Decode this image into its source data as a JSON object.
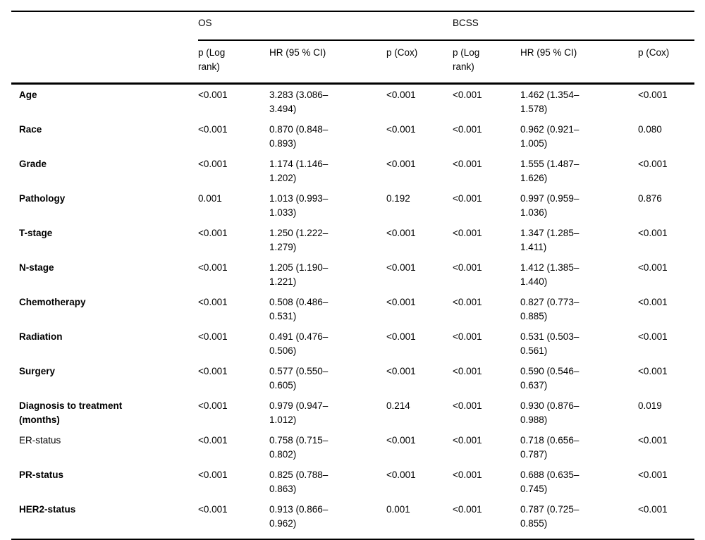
{
  "table": {
    "group_headers": [
      {
        "label": "OS"
      },
      {
        "label": "BCSS"
      }
    ],
    "sub_headers": [
      "p (Log rank)",
      "HR (95 % CI)",
      "p (Cox)",
      "p (Log rank)",
      "HR (95 % CI)",
      "p (Cox)"
    ],
    "rows": [
      {
        "label": "Age",
        "bold": true,
        "os": {
          "p_log": "<0.001",
          "hr": "3.283 (3.086–3.494)",
          "p_cox": "<0.001"
        },
        "bcss": {
          "p_log": "<0.001",
          "hr": "1.462 (1.354–1.578)",
          "p_cox": "<0.001"
        }
      },
      {
        "label": "Race",
        "bold": true,
        "os": {
          "p_log": "<0.001",
          "hr": "0.870 (0.848–0.893)",
          "p_cox": "<0.001"
        },
        "bcss": {
          "p_log": "<0.001",
          "hr": "0.962 (0.921–1.005)",
          "p_cox": "0.080"
        }
      },
      {
        "label": "Grade",
        "bold": true,
        "os": {
          "p_log": "<0.001",
          "hr": "1.174 (1.146–1.202)",
          "p_cox": "<0.001"
        },
        "bcss": {
          "p_log": "<0.001",
          "hr": "1.555 (1.487–1.626)",
          "p_cox": "<0.001"
        }
      },
      {
        "label": "Pathology",
        "bold": true,
        "os": {
          "p_log": "0.001",
          "hr": "1.013 (0.993–1.033)",
          "p_cox": "0.192"
        },
        "bcss": {
          "p_log": "<0.001",
          "hr": "0.997 (0.959–1.036)",
          "p_cox": "0.876"
        }
      },
      {
        "label": "T-stage",
        "bold": true,
        "os": {
          "p_log": "<0.001",
          "hr": "1.250 (1.222–1.279)",
          "p_cox": "<0.001"
        },
        "bcss": {
          "p_log": "<0.001",
          "hr": "1.347 (1.285–1.411)",
          "p_cox": "<0.001"
        }
      },
      {
        "label": "N-stage",
        "bold": true,
        "os": {
          "p_log": "<0.001",
          "hr": "1.205 (1.190–1.221)",
          "p_cox": "<0.001"
        },
        "bcss": {
          "p_log": "<0.001",
          "hr": "1.412 (1.385–1.440)",
          "p_cox": "<0.001"
        }
      },
      {
        "label": "Chemotherapy",
        "bold": true,
        "os": {
          "p_log": "<0.001",
          "hr": "0.508 (0.486–0.531)",
          "p_cox": "<0.001"
        },
        "bcss": {
          "p_log": "<0.001",
          "hr": "0.827 (0.773–0.885)",
          "p_cox": "<0.001"
        }
      },
      {
        "label": "Radiation",
        "bold": true,
        "os": {
          "p_log": "<0.001",
          "hr": "0.491 (0.476–0.506)",
          "p_cox": "<0.001"
        },
        "bcss": {
          "p_log": "<0.001",
          "hr": "0.531 (0.503–0.561)",
          "p_cox": "<0.001"
        }
      },
      {
        "label": "Surgery",
        "bold": true,
        "os": {
          "p_log": "<0.001",
          "hr": "0.577 (0.550–0.605)",
          "p_cox": "<0.001"
        },
        "bcss": {
          "p_log": "<0.001",
          "hr": "0.590 (0.546–0.637)",
          "p_cox": "<0.001"
        }
      },
      {
        "label": "Diagnosis to treatment (months)",
        "bold": true,
        "os": {
          "p_log": "<0.001",
          "hr": "0.979 (0.947–1.012)",
          "p_cox": "0.214"
        },
        "bcss": {
          "p_log": "<0.001",
          "hr": "0.930 (0.876–0.988)",
          "p_cox": "0.019"
        }
      },
      {
        "label": "ER-status",
        "bold": false,
        "os": {
          "p_log": "<0.001",
          "hr": "0.758 (0.715–0.802)",
          "p_cox": "<0.001"
        },
        "bcss": {
          "p_log": "<0.001",
          "hr": "0.718 (0.656–0.787)",
          "p_cox": "<0.001"
        }
      },
      {
        "label": "PR-status",
        "bold": true,
        "os": {
          "p_log": "<0.001",
          "hr": "0.825 (0.788–0.863)",
          "p_cox": "<0.001"
        },
        "bcss": {
          "p_log": "<0.001",
          "hr": "0.688 (0.635–0.745)",
          "p_cox": "<0.001"
        }
      },
      {
        "label": "HER2-status",
        "bold": true,
        "os": {
          "p_log": "<0.001",
          "hr": "0.913 (0.866–0.962)",
          "p_cox": "0.001"
        },
        "bcss": {
          "p_log": "<0.001",
          "hr": "0.787 (0.725–0.855)",
          "p_cox": "<0.001"
        }
      }
    ]
  }
}
